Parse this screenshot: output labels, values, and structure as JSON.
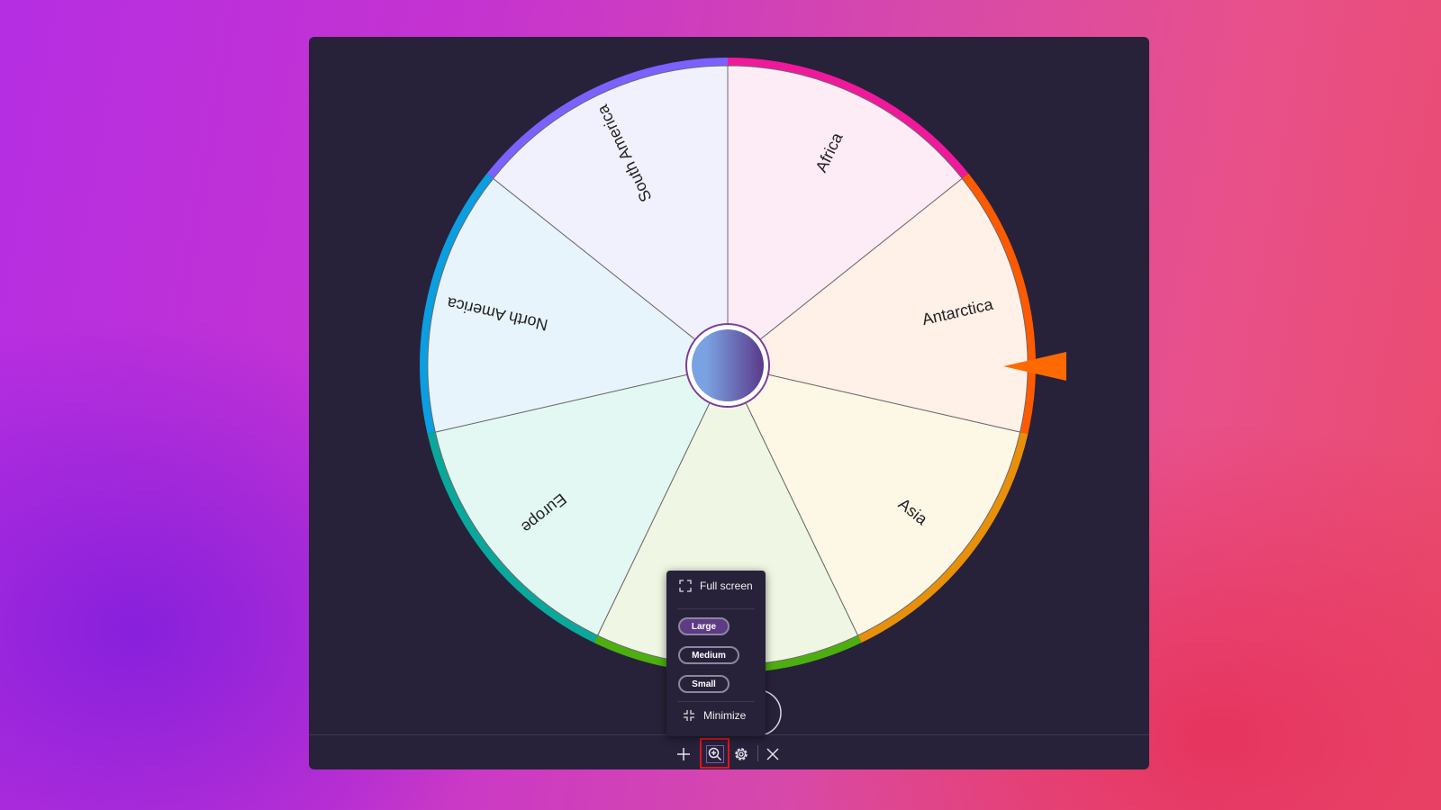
{
  "wheel": {
    "slices": [
      {
        "label": "Africa",
        "ring": "#f0199b",
        "fill": "#fdebf6"
      },
      {
        "label": "Antarctica",
        "ring": "#ff5a00",
        "fill": "#fff0e8"
      },
      {
        "label": "Asia",
        "ring": "#e8900a",
        "fill": "#fdf7e6"
      },
      {
        "label": "",
        "ring": "#4caf0f",
        "fill": "#eff7e4"
      },
      {
        "label": "Europe",
        "ring": "#0aa89a",
        "fill": "#e3f8f2"
      },
      {
        "label": "North America",
        "ring": "#0b9ee0",
        "fill": "#e8f4fb"
      },
      {
        "label": "South America",
        "ring": "#7b61ff",
        "fill": "#f1f0fd"
      }
    ],
    "pointer_color": "#ff6a00",
    "hub_gradient": [
      "#7aa2e2",
      "#5a3a8a"
    ]
  },
  "menu": {
    "full_screen": "Full screen",
    "sizes": [
      {
        "label": "Large",
        "selected": true
      },
      {
        "label": "Medium",
        "selected": false
      },
      {
        "label": "Small",
        "selected": false
      }
    ],
    "minimize": "Minimize"
  },
  "toolbar": {
    "icons": [
      "plus-icon",
      "zoom-in-icon",
      "gear-icon",
      "close-icon"
    ],
    "highlight_color": "#e0141e"
  }
}
